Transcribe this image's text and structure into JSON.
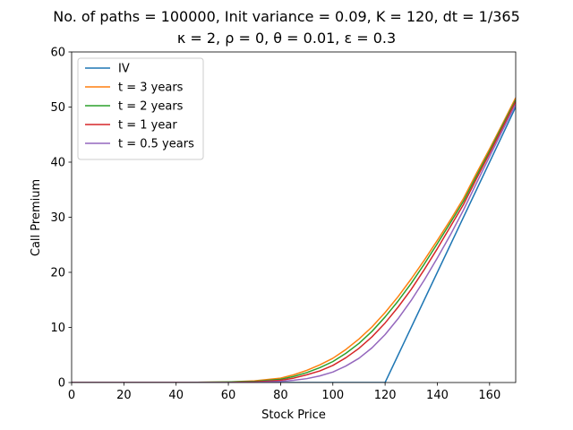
{
  "chart_data": {
    "type": "line",
    "title_line1": "No. of paths = 100000, Init variance = 0.09, K = 120, dt = 1/365",
    "title_line2": "κ = 2, ρ = 0, θ = 0.01, ε = 0.3",
    "xlabel": "Stock Price",
    "ylabel": "Call Premium",
    "xlim": [
      0,
      170
    ],
    "ylim": [
      0,
      60
    ],
    "xticks": [
      0,
      20,
      40,
      60,
      80,
      100,
      120,
      140,
      160
    ],
    "yticks": [
      0,
      10,
      20,
      30,
      40,
      50,
      60
    ],
    "grid": false,
    "legend_position": "upper left",
    "x": [
      0,
      20,
      40,
      60,
      70,
      80,
      85,
      90,
      95,
      100,
      105,
      110,
      115,
      120,
      125,
      130,
      135,
      140,
      145,
      150,
      155,
      160,
      165,
      170
    ],
    "series": [
      {
        "name": "IV",
        "color": "#1f77b4",
        "values": [
          0,
          0,
          0,
          0,
          0,
          0,
          0,
          0,
          0,
          0,
          0,
          0,
          0,
          0,
          5,
          10,
          15,
          20,
          25,
          30,
          35,
          40,
          45,
          50
        ]
      },
      {
        "name": "t = 3 years",
        "color": "#ff7f0e",
        "values": [
          0,
          0,
          0,
          0.1,
          0.3,
          0.8,
          1.4,
          2.2,
          3.2,
          4.4,
          6.0,
          7.9,
          10.1,
          12.7,
          15.6,
          18.8,
          22.2,
          25.8,
          29.5,
          33.4,
          38.0,
          42.4,
          47.0,
          51.7
        ]
      },
      {
        "name": "t = 2 years",
        "color": "#2ca02c",
        "values": [
          0,
          0,
          0,
          0.1,
          0.2,
          0.6,
          1.1,
          1.8,
          2.7,
          3.8,
          5.3,
          7.1,
          9.3,
          11.9,
          14.8,
          18.0,
          21.5,
          25.2,
          29.0,
          32.9,
          37.5,
          42.0,
          46.7,
          51.3
        ]
      },
      {
        "name": "t = 1 year",
        "color": "#d62728",
        "values": [
          0,
          0,
          0,
          0,
          0.1,
          0.4,
          0.8,
          1.4,
          2.1,
          3.1,
          4.5,
          6.2,
          8.3,
          10.8,
          13.7,
          16.9,
          20.5,
          24.3,
          28.3,
          32.3,
          37.0,
          41.6,
          46.3,
          51.0
        ]
      },
      {
        "name": "t = 0.5 years",
        "color": "#9467bd",
        "values": [
          0,
          0,
          0,
          0,
          0,
          0.2,
          0.4,
          0.7,
          1.2,
          1.9,
          3.0,
          4.4,
          6.3,
          8.7,
          11.6,
          14.9,
          18.6,
          22.6,
          26.8,
          31.3,
          36.2,
          41.0,
          45.8,
          50.5
        ]
      }
    ]
  }
}
